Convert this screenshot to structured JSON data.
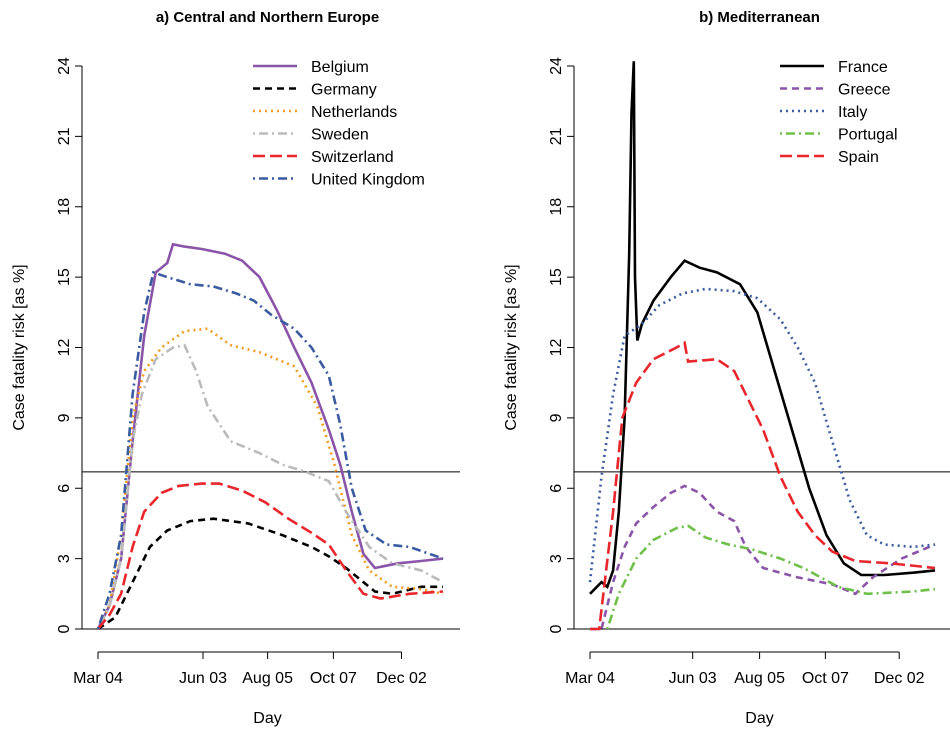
{
  "chart_data": [
    {
      "type": "line",
      "title": "a) Central and Northern Europe",
      "x_label": "Day",
      "y_label": "Case fatality risk [as %]",
      "xlim": [
        0,
        299
      ],
      "ylim": [
        0,
        24
      ],
      "xticks": [
        {
          "value": 0,
          "label": "Mar 04"
        },
        {
          "value": 91,
          "label": "Jun 03"
        },
        {
          "value": 147,
          "label": "Aug 05"
        },
        {
          "value": 204,
          "label": "Oct 07"
        },
        {
          "value": 263,
          "label": "Dec 02"
        }
      ],
      "yticks": [
        0,
        3,
        6,
        9,
        12,
        15,
        18,
        21,
        24
      ],
      "hline": 6.7,
      "legend": "top-right",
      "series": [
        {
          "name": "Belgium",
          "color": "#8a55a8",
          "dash": "solid",
          "x": [
            0,
            10,
            20,
            30,
            40,
            50,
            60,
            65,
            75,
            90,
            110,
            125,
            140,
            155,
            170,
            185,
            200,
            210,
            220,
            230,
            240,
            260,
            280,
            299
          ],
          "values": [
            0,
            1,
            3,
            8,
            12.5,
            15.2,
            15.6,
            16.4,
            16.3,
            16.2,
            16.0,
            15.7,
            15.0,
            13.6,
            12.0,
            10.5,
            8.5,
            7.0,
            5.0,
            3.2,
            2.6,
            2.8,
            2.9,
            3.0
          ]
        },
        {
          "name": "Germany",
          "color": "#000000",
          "dash": "dashed",
          "x": [
            0,
            15,
            30,
            45,
            60,
            80,
            100,
            130,
            160,
            185,
            200,
            215,
            240,
            255,
            280,
            299
          ],
          "values": [
            0,
            0.5,
            2,
            3.5,
            4.2,
            4.6,
            4.7,
            4.5,
            4.0,
            3.5,
            3.1,
            2.6,
            1.6,
            1.5,
            1.8,
            1.8
          ]
        },
        {
          "name": "Netherlands",
          "color": "#f39c1f",
          "dash": "dotted",
          "x": [
            0,
            10,
            20,
            30,
            40,
            55,
            75,
            95,
            115,
            140,
            170,
            190,
            205,
            220,
            235,
            255,
            280,
            299
          ],
          "values": [
            0,
            1,
            4,
            9,
            11,
            12,
            12.7,
            12.8,
            12.1,
            11.8,
            11.2,
            9.5,
            7,
            4,
            2.5,
            1.8,
            1.7,
            1.5
          ]
        },
        {
          "name": "Sweden",
          "color": "#bbbbbb",
          "dash": "dashdot",
          "x": [
            0,
            10,
            20,
            30,
            38,
            50,
            65,
            75,
            85,
            95,
            115,
            140,
            160,
            180,
            200,
            215,
            235,
            255,
            280,
            299
          ],
          "values": [
            0,
            1,
            3,
            8,
            10,
            11.5,
            12,
            12.1,
            11,
            9.5,
            8,
            7.5,
            7,
            6.7,
            6.3,
            5,
            3.5,
            2.8,
            2.5,
            2.0
          ]
        },
        {
          "name": "Switzerland",
          "color": "#e8262b",
          "dash": "longdash",
          "x": [
            0,
            10,
            20,
            30,
            40,
            55,
            70,
            90,
            105,
            125,
            145,
            165,
            185,
            200,
            215,
            230,
            245,
            270,
            299
          ],
          "values": [
            0,
            0.6,
            1.5,
            3.5,
            5,
            5.8,
            6.1,
            6.2,
            6.2,
            5.9,
            5.4,
            4.7,
            4.1,
            3.6,
            2.5,
            1.5,
            1.3,
            1.5,
            1.6
          ]
        },
        {
          "name": "United Kingdom",
          "color": "#3a5ba0",
          "dash": "dashdot",
          "x": [
            0,
            10,
            20,
            30,
            40,
            48,
            60,
            80,
            100,
            120,
            135,
            150,
            170,
            185,
            200,
            210,
            220,
            232,
            250,
            270,
            299
          ],
          "values": [
            0,
            1.5,
            4,
            10,
            13.5,
            15.2,
            15,
            14.7,
            14.6,
            14.3,
            14.0,
            13.4,
            12.8,
            12.0,
            10.8,
            8.7,
            6,
            4.2,
            3.6,
            3.5,
            3.0
          ]
        }
      ]
    },
    {
      "type": "line",
      "title": "b) Mediterranean",
      "x_label": "Day",
      "y_label": "Case fatality risk [as %]",
      "xlim": [
        0,
        299
      ],
      "ylim": [
        0,
        24
      ],
      "xticks": [
        {
          "value": 0,
          "label": "Mar 04"
        },
        {
          "value": 89,
          "label": "Jun 03"
        },
        {
          "value": 147,
          "label": "Aug 05"
        },
        {
          "value": 204,
          "label": "Oct 07"
        },
        {
          "value": 268,
          "label": "Dec 02"
        }
      ],
      "yticks": [
        0,
        3,
        6,
        9,
        12,
        15,
        18,
        21,
        24
      ],
      "hline": 6.7,
      "legend": "top-right",
      "series": [
        {
          "name": "France",
          "color": "#000000",
          "dash": "solid",
          "x": [
            0,
            10,
            15,
            20,
            25,
            30,
            34,
            36,
            38,
            39,
            41,
            45,
            55,
            70,
            82,
            95,
            110,
            130,
            145,
            160,
            175,
            190,
            205,
            220,
            235,
            255,
            280,
            299
          ],
          "values": [
            1.5,
            2,
            1.8,
            2.5,
            5,
            9,
            16,
            22,
            24.2,
            15,
            12.3,
            13,
            14,
            15,
            15.7,
            15.4,
            15.2,
            14.7,
            13.5,
            11,
            8.5,
            6,
            4,
            2.8,
            2.3,
            2.3,
            2.4,
            2.5
          ]
        },
        {
          "name": "Greece",
          "color": "#8a55a8",
          "dash": "dashed",
          "x": [
            0,
            10,
            20,
            30,
            40,
            55,
            70,
            82,
            95,
            110,
            125,
            135,
            150,
            180,
            210,
            230,
            245,
            270,
            299
          ],
          "values": [
            0,
            0,
            2,
            3.5,
            4.5,
            5.2,
            5.8,
            6.1,
            5.8,
            5.0,
            4.6,
            3.5,
            2.6,
            2.2,
            1.9,
            1.5,
            2.2,
            3,
            3.6
          ]
        },
        {
          "name": "Italy",
          "color": "#3a5ba0",
          "dash": "dotted",
          "x": [
            0,
            10,
            20,
            30,
            45,
            60,
            80,
            100,
            125,
            145,
            165,
            180,
            195,
            210,
            225,
            240,
            255,
            280,
            299
          ],
          "values": [
            2,
            6.5,
            10,
            12.5,
            13,
            13.8,
            14.3,
            14.5,
            14.4,
            14.1,
            13.2,
            12,
            10.5,
            8,
            5.5,
            4,
            3.6,
            3.5,
            3.6
          ]
        },
        {
          "name": "Portugal",
          "color": "#6ec04a",
          "dash": "dashdot",
          "x": [
            15,
            25,
            40,
            55,
            75,
            85,
            100,
            120,
            140,
            165,
            185,
            200,
            215,
            240,
            280,
            299
          ],
          "values": [
            0,
            1.5,
            3,
            3.8,
            4.3,
            4.4,
            3.9,
            3.6,
            3.4,
            3.0,
            2.6,
            2.2,
            1.8,
            1.5,
            1.6,
            1.7
          ]
        },
        {
          "name": "Spain",
          "color": "#e8262b",
          "dash": "longdash",
          "x": [
            0,
            8,
            20,
            28,
            40,
            55,
            75,
            82,
            85,
            110,
            125,
            135,
            150,
            165,
            180,
            195,
            210,
            230,
            260,
            299
          ],
          "values": [
            0,
            0,
            5,
            9,
            10.5,
            11.5,
            12,
            12.2,
            11.4,
            11.5,
            11.0,
            10,
            8.5,
            6.5,
            5,
            4,
            3.3,
            2.9,
            2.8,
            2.6
          ]
        }
      ]
    }
  ]
}
